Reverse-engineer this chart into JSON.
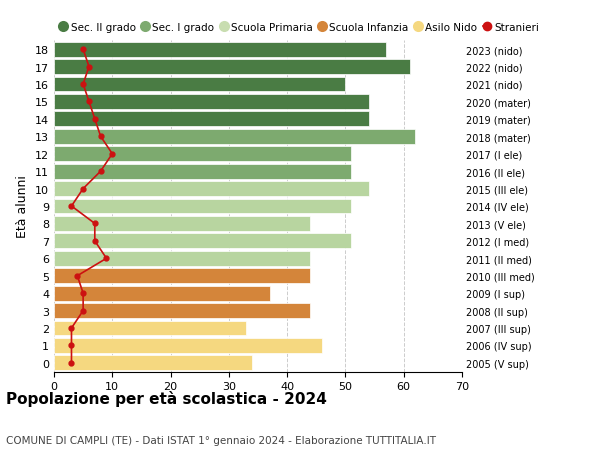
{
  "ages": [
    18,
    17,
    16,
    15,
    14,
    13,
    12,
    11,
    10,
    9,
    8,
    7,
    6,
    5,
    4,
    3,
    2,
    1,
    0
  ],
  "bar_values": [
    57,
    61,
    50,
    54,
    54,
    62,
    51,
    51,
    54,
    51,
    44,
    51,
    44,
    44,
    37,
    44,
    33,
    46,
    34
  ],
  "bar_colors": [
    "#4a7c44",
    "#4a7c44",
    "#4a7c44",
    "#4a7c44",
    "#4a7c44",
    "#7daa6f",
    "#7daa6f",
    "#7daa6f",
    "#b8d5a0",
    "#b8d5a0",
    "#b8d5a0",
    "#b8d5a0",
    "#b8d5a0",
    "#d4853a",
    "#d4853a",
    "#d4853a",
    "#f5d880",
    "#f5d880",
    "#f5d880"
  ],
  "stranieri_values": [
    5,
    6,
    5,
    6,
    7,
    8,
    10,
    8,
    5,
    3,
    7,
    7,
    9,
    4,
    5,
    5,
    3,
    3,
    3
  ],
  "right_labels": [
    "2005 (V sup)",
    "2006 (IV sup)",
    "2007 (III sup)",
    "2008 (II sup)",
    "2009 (I sup)",
    "2010 (III med)",
    "2011 (II med)",
    "2012 (I med)",
    "2013 (V ele)",
    "2014 (IV ele)",
    "2015 (III ele)",
    "2016 (II ele)",
    "2017 (I ele)",
    "2018 (mater)",
    "2019 (mater)",
    "2020 (mater)",
    "2021 (nido)",
    "2022 (nido)",
    "2023 (nido)"
  ],
  "legend_labels": [
    "Sec. II grado",
    "Sec. I grado",
    "Scuola Primaria",
    "Scuola Infanzia",
    "Asilo Nido",
    "Stranieri"
  ],
  "legend_colors": [
    "#4a7c44",
    "#7daa6f",
    "#c8ddb0",
    "#d4853a",
    "#f5d880",
    "#cc1111"
  ],
  "ylabel_left": "Età alunni",
  "title": "Popolazione per età scolastica - 2024",
  "subtitle": "COMUNE DI CAMPLI (TE) - Dati ISTAT 1° gennaio 2024 - Elaborazione TUTTITALIA.IT",
  "xlim": [
    0,
    70
  ],
  "xticks": [
    0,
    10,
    20,
    30,
    40,
    50,
    60,
    70
  ],
  "stranieri_color": "#cc1111",
  "background_color": "#ffffff",
  "grid_color": "#cccccc"
}
